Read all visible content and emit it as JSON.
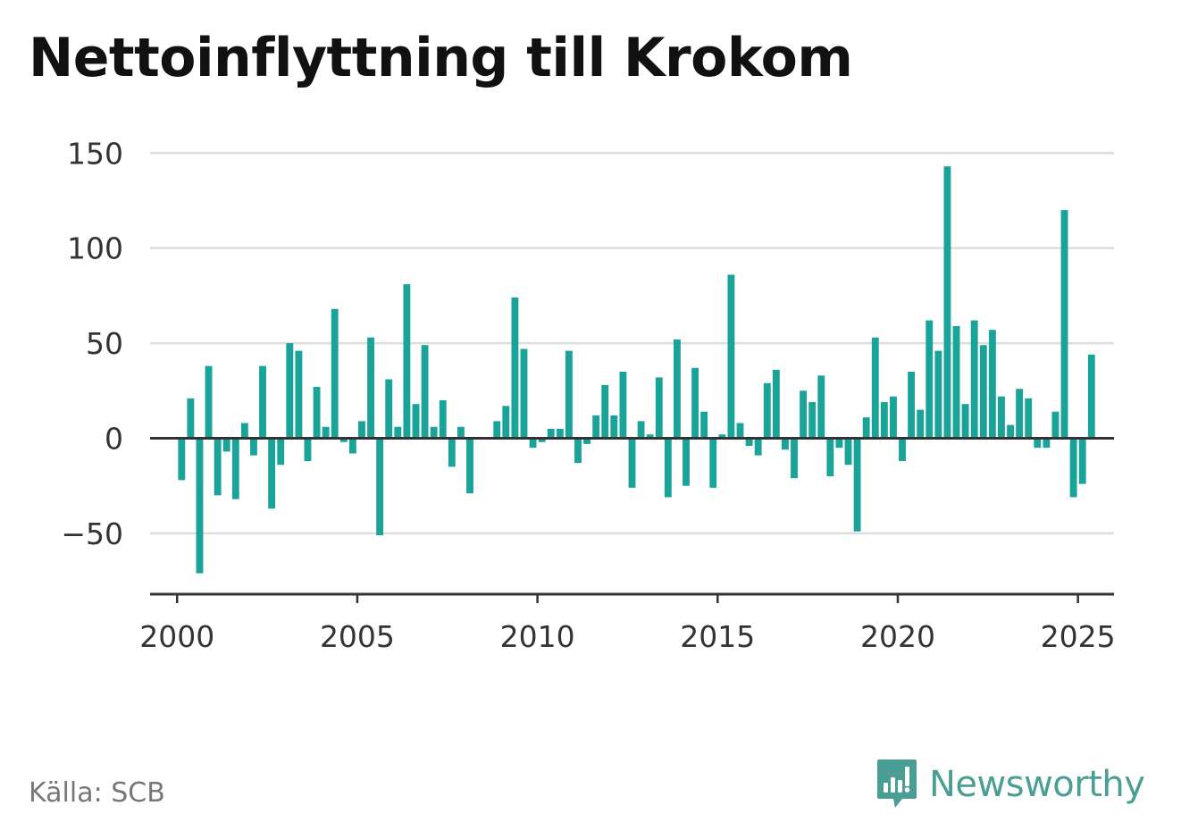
{
  "title": "Nettoinflyttning till Krokom",
  "source": "Källa: SCB",
  "brand": {
    "name": "Newsworthy",
    "icon": "newsworthy-logo-icon"
  },
  "colors": {
    "bar": "#1aa398",
    "grid": "#dddddd",
    "axis": "#333333",
    "brand": "#4a9e94"
  },
  "chart_data": {
    "type": "bar",
    "title": "Nettoinflyttning till Krokom",
    "xlabel": "",
    "ylabel": "",
    "xlim": [
      1999.25,
      2026.0
    ],
    "ylim": [
      -82,
      160
    ],
    "y_ticks": [
      150,
      100,
      50,
      0,
      -50
    ],
    "y_tick_labels": [
      "150",
      "100",
      "50",
      "0",
      "−50"
    ],
    "x_ticks": [
      2000,
      2005,
      2010,
      2015,
      2020,
      2025
    ],
    "x_tick_labels": [
      "2000",
      "2005",
      "2010",
      "2015",
      "2020",
      "2025"
    ],
    "grid": true,
    "series": [
      {
        "values": [
          {
            "x": 2000.125,
            "y": -22
          },
          {
            "x": 2000.375,
            "y": 21
          },
          {
            "x": 2000.625,
            "y": -71
          },
          {
            "x": 2000.875,
            "y": 38
          },
          {
            "x": 2001.125,
            "y": -30
          },
          {
            "x": 2001.375,
            "y": -7
          },
          {
            "x": 2001.625,
            "y": -32
          },
          {
            "x": 2001.875,
            "y": 8
          },
          {
            "x": 2002.125,
            "y": -9
          },
          {
            "x": 2002.375,
            "y": 38
          },
          {
            "x": 2002.625,
            "y": -37
          },
          {
            "x": 2002.875,
            "y": -14
          },
          {
            "x": 2003.125,
            "y": 50
          },
          {
            "x": 2003.375,
            "y": 46
          },
          {
            "x": 2003.625,
            "y": -12
          },
          {
            "x": 2003.875,
            "y": 27
          },
          {
            "x": 2004.125,
            "y": 6
          },
          {
            "x": 2004.375,
            "y": 68
          },
          {
            "x": 2004.625,
            "y": -2
          },
          {
            "x": 2004.875,
            "y": -8
          },
          {
            "x": 2005.125,
            "y": 9
          },
          {
            "x": 2005.375,
            "y": 53
          },
          {
            "x": 2005.625,
            "y": -51
          },
          {
            "x": 2005.875,
            "y": 31
          },
          {
            "x": 2006.125,
            "y": 6
          },
          {
            "x": 2006.375,
            "y": 81
          },
          {
            "x": 2006.625,
            "y": 18
          },
          {
            "x": 2006.875,
            "y": 49
          },
          {
            "x": 2007.125,
            "y": 6
          },
          {
            "x": 2007.375,
            "y": 20
          },
          {
            "x": 2007.625,
            "y": -15
          },
          {
            "x": 2007.875,
            "y": 6
          },
          {
            "x": 2008.125,
            "y": -29
          },
          {
            "x": 2008.375,
            "y": 0
          },
          {
            "x": 2008.625,
            "y": 0
          },
          {
            "x": 2008.875,
            "y": 9
          },
          {
            "x": 2009.125,
            "y": 17
          },
          {
            "x": 2009.375,
            "y": 74
          },
          {
            "x": 2009.625,
            "y": 47
          },
          {
            "x": 2009.875,
            "y": -5
          },
          {
            "x": 2010.125,
            "y": -2
          },
          {
            "x": 2010.375,
            "y": 5
          },
          {
            "x": 2010.625,
            "y": 5
          },
          {
            "x": 2010.875,
            "y": 46
          },
          {
            "x": 2011.125,
            "y": -13
          },
          {
            "x": 2011.375,
            "y": -3
          },
          {
            "x": 2011.625,
            "y": 12
          },
          {
            "x": 2011.875,
            "y": 28
          },
          {
            "x": 2012.125,
            "y": 12
          },
          {
            "x": 2012.375,
            "y": 35
          },
          {
            "x": 2012.625,
            "y": -26
          },
          {
            "x": 2012.875,
            "y": 9
          },
          {
            "x": 2013.125,
            "y": 2
          },
          {
            "x": 2013.375,
            "y": 32
          },
          {
            "x": 2013.625,
            "y": -31
          },
          {
            "x": 2013.875,
            "y": 52
          },
          {
            "x": 2014.125,
            "y": -25
          },
          {
            "x": 2014.375,
            "y": 37
          },
          {
            "x": 2014.625,
            "y": 14
          },
          {
            "x": 2014.875,
            "y": -26
          },
          {
            "x": 2015.125,
            "y": 2
          },
          {
            "x": 2015.375,
            "y": 86
          },
          {
            "x": 2015.625,
            "y": 8
          },
          {
            "x": 2015.875,
            "y": -4
          },
          {
            "x": 2016.125,
            "y": -9
          },
          {
            "x": 2016.375,
            "y": 29
          },
          {
            "x": 2016.625,
            "y": 36
          },
          {
            "x": 2016.875,
            "y": -6
          },
          {
            "x": 2017.125,
            "y": -21
          },
          {
            "x": 2017.375,
            "y": 25
          },
          {
            "x": 2017.625,
            "y": 19
          },
          {
            "x": 2017.875,
            "y": 33
          },
          {
            "x": 2018.125,
            "y": -20
          },
          {
            "x": 2018.375,
            "y": -5
          },
          {
            "x": 2018.625,
            "y": -14
          },
          {
            "x": 2018.875,
            "y": -49
          },
          {
            "x": 2019.125,
            "y": 11
          },
          {
            "x": 2019.375,
            "y": 53
          },
          {
            "x": 2019.625,
            "y": 19
          },
          {
            "x": 2019.875,
            "y": 22
          },
          {
            "x": 2020.125,
            "y": -12
          },
          {
            "x": 2020.375,
            "y": 35
          },
          {
            "x": 2020.625,
            "y": 15
          },
          {
            "x": 2020.875,
            "y": 62
          },
          {
            "x": 2021.125,
            "y": 46
          },
          {
            "x": 2021.375,
            "y": 143
          },
          {
            "x": 2021.625,
            "y": 59
          },
          {
            "x": 2021.875,
            "y": 18
          },
          {
            "x": 2022.125,
            "y": 62
          },
          {
            "x": 2022.375,
            "y": 49
          },
          {
            "x": 2022.625,
            "y": 57
          },
          {
            "x": 2022.875,
            "y": 22
          },
          {
            "x": 2023.125,
            "y": 7
          },
          {
            "x": 2023.375,
            "y": 26
          },
          {
            "x": 2023.625,
            "y": 21
          },
          {
            "x": 2023.875,
            "y": -5
          },
          {
            "x": 2024.125,
            "y": -5
          },
          {
            "x": 2024.375,
            "y": 14
          },
          {
            "x": 2024.625,
            "y": 120
          },
          {
            "x": 2024.875,
            "y": -31
          },
          {
            "x": 2025.125,
            "y": -24
          },
          {
            "x": 2025.375,
            "y": 44
          }
        ]
      }
    ]
  }
}
